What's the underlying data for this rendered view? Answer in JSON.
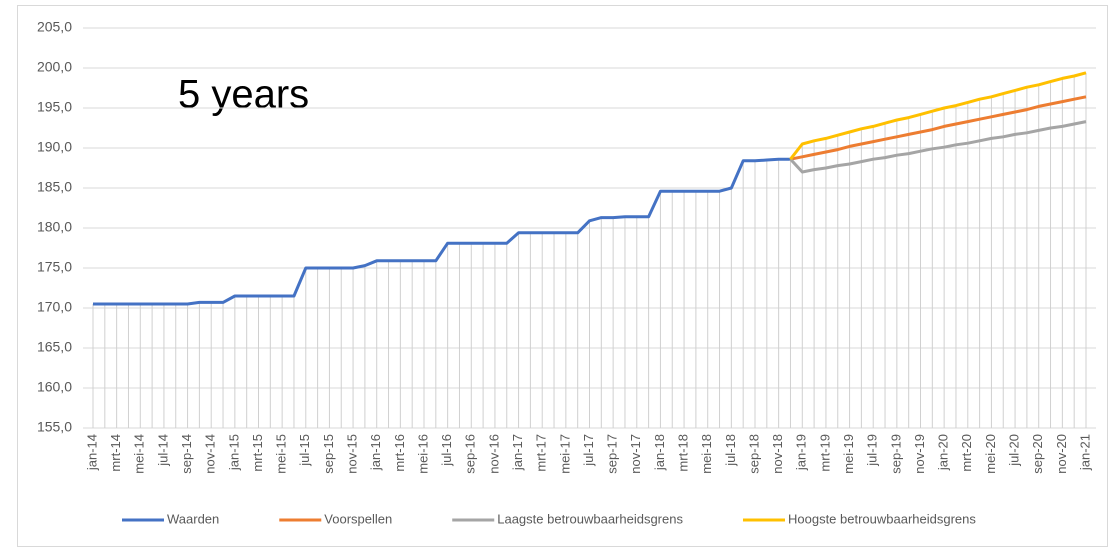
{
  "chart_data": {
    "type": "line",
    "annotation": "5 years",
    "categories": [
      "jan-14",
      null,
      "mrt-14",
      null,
      "mei-14",
      null,
      "jul-14",
      null,
      "sep-14",
      null,
      "nov-14",
      null,
      "jan-15",
      null,
      "mrt-15",
      null,
      "mei-15",
      null,
      "jul-15",
      null,
      "sep-15",
      null,
      "nov-15",
      null,
      "jan-16",
      null,
      "mrt-16",
      null,
      "mei-16",
      null,
      "jul-16",
      null,
      "sep-16",
      null,
      "nov-16",
      null,
      "jan-17",
      null,
      "mrt-17",
      null,
      "mei-17",
      null,
      "jul-17",
      null,
      "sep-17",
      null,
      "nov-17",
      null,
      "jan-18",
      null,
      "mrt-18",
      null,
      "mei-18",
      null,
      "jul-18",
      null,
      "sep-18",
      null,
      "nov-18",
      null,
      "jan-19",
      null,
      "mrt-19",
      null,
      "mei-19",
      null,
      "jul-19",
      null,
      "sep-19",
      null,
      "nov-19",
      null,
      "jan-20",
      null,
      "mrt-20",
      null,
      "mei-20",
      null,
      "jul-20",
      null,
      "sep-20",
      null,
      "nov-20",
      null,
      "jan-21"
    ],
    "series": [
      {
        "name": "Waarden",
        "color": "#4472c4",
        "values": [
          170.5,
          170.5,
          170.5,
          170.5,
          170.5,
          170.5,
          170.5,
          170.5,
          170.5,
          170.7,
          170.7,
          170.7,
          171.5,
          171.5,
          171.5,
          171.5,
          171.5,
          171.5,
          175.0,
          175.0,
          175.0,
          175.0,
          175.0,
          175.3,
          175.9,
          175.9,
          175.9,
          175.9,
          175.9,
          175.9,
          178.1,
          178.1,
          178.1,
          178.1,
          178.1,
          178.1,
          179.4,
          179.4,
          179.4,
          179.4,
          179.4,
          179.4,
          180.9,
          181.3,
          181.3,
          181.4,
          181.4,
          181.4,
          184.6,
          184.6,
          184.6,
          184.6,
          184.6,
          184.6,
          185.0,
          188.4,
          188.4,
          188.5,
          188.6,
          188.6,
          null,
          null,
          null,
          null,
          null,
          null,
          null,
          null,
          null,
          null,
          null,
          null,
          null,
          null,
          null,
          null,
          null,
          null,
          null,
          null,
          null,
          null,
          null,
          null,
          null
        ]
      },
      {
        "name": "Voorspellen",
        "color": "#ed7d31",
        "values": [
          null,
          null,
          null,
          null,
          null,
          null,
          null,
          null,
          null,
          null,
          null,
          null,
          null,
          null,
          null,
          null,
          null,
          null,
          null,
          null,
          null,
          null,
          null,
          null,
          null,
          null,
          null,
          null,
          null,
          null,
          null,
          null,
          null,
          null,
          null,
          null,
          null,
          null,
          null,
          null,
          null,
          null,
          null,
          null,
          null,
          null,
          null,
          null,
          null,
          null,
          null,
          null,
          null,
          null,
          null,
          null,
          null,
          null,
          null,
          188.6,
          188.9,
          189.2,
          189.5,
          189.8,
          190.2,
          190.5,
          190.8,
          191.1,
          191.4,
          191.7,
          192.0,
          192.3,
          192.7,
          193.0,
          193.3,
          193.6,
          193.9,
          194.2,
          194.5,
          194.8,
          195.2,
          195.5,
          195.8,
          196.1,
          196.4
        ]
      },
      {
        "name": "Laagste betrouwbaarheidsgrens",
        "color": "#a5a5a5",
        "values": [
          null,
          null,
          null,
          null,
          null,
          null,
          null,
          null,
          null,
          null,
          null,
          null,
          null,
          null,
          null,
          null,
          null,
          null,
          null,
          null,
          null,
          null,
          null,
          null,
          null,
          null,
          null,
          null,
          null,
          null,
          null,
          null,
          null,
          null,
          null,
          null,
          null,
          null,
          null,
          null,
          null,
          null,
          null,
          null,
          null,
          null,
          null,
          null,
          null,
          null,
          null,
          null,
          null,
          null,
          null,
          null,
          null,
          null,
          null,
          188.6,
          187.0,
          187.3,
          187.5,
          187.8,
          188.0,
          188.3,
          188.6,
          188.8,
          189.1,
          189.3,
          189.6,
          189.9,
          190.1,
          190.4,
          190.6,
          190.9,
          191.2,
          191.4,
          191.7,
          191.9,
          192.2,
          192.5,
          192.7,
          193.0,
          193.3
        ]
      },
      {
        "name": "Hoogste betrouwbaarheidsgrens",
        "color": "#ffc000",
        "values": [
          null,
          null,
          null,
          null,
          null,
          null,
          null,
          null,
          null,
          null,
          null,
          null,
          null,
          null,
          null,
          null,
          null,
          null,
          null,
          null,
          null,
          null,
          null,
          null,
          null,
          null,
          null,
          null,
          null,
          null,
          null,
          null,
          null,
          null,
          null,
          null,
          null,
          null,
          null,
          null,
          null,
          null,
          null,
          null,
          null,
          null,
          null,
          null,
          null,
          null,
          null,
          null,
          null,
          null,
          null,
          null,
          null,
          null,
          null,
          188.6,
          190.5,
          190.9,
          191.2,
          191.6,
          192.0,
          192.4,
          192.7,
          193.1,
          193.5,
          193.8,
          194.2,
          194.6,
          195.0,
          195.3,
          195.7,
          196.1,
          196.4,
          196.8,
          197.2,
          197.6,
          197.9,
          198.3,
          198.7,
          199.0,
          199.4
        ]
      }
    ],
    "ylim": [
      155,
      205
    ],
    "yticks": [
      {
        "value": 155,
        "label": "155,0"
      },
      {
        "value": 160,
        "label": "160,0"
      },
      {
        "value": 165,
        "label": "165,0"
      },
      {
        "value": 170,
        "label": "170,0"
      },
      {
        "value": 175,
        "label": "175,0"
      },
      {
        "value": 180,
        "label": "180,0"
      },
      {
        "value": 185,
        "label": "185,0"
      },
      {
        "value": 190,
        "label": "190,0"
      },
      {
        "value": 195,
        "label": "195,0"
      },
      {
        "value": 200,
        "label": "200,0"
      },
      {
        "value": 205,
        "label": "205,0"
      }
    ],
    "grid": true,
    "legend": "bottom"
  }
}
